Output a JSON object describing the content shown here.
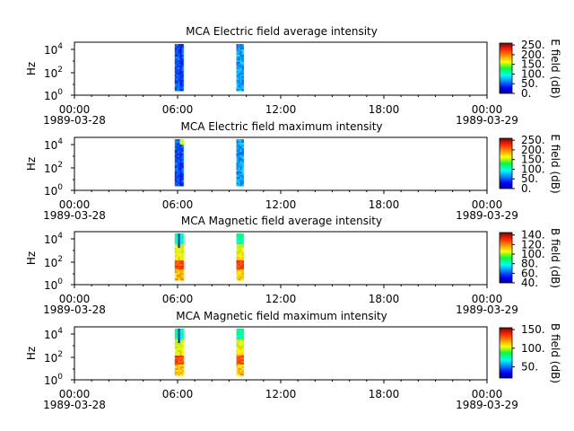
{
  "chart_data": [
    {
      "type": "heatmap",
      "title": "MCA  Electric field average intensity",
      "ylabel": "Hz",
      "y_ticks": [
        "10^4",
        "10^2",
        "10^0"
      ],
      "x_ticks": [
        {
          "time": "00:00",
          "date": "1989-03-28"
        },
        {
          "time": "06:00",
          "date": ""
        },
        {
          "time": "12:00",
          "date": ""
        },
        {
          "time": "18:00",
          "date": ""
        },
        {
          "time": "00:00",
          "date": "1989-03-29"
        }
      ],
      "x_range": [
        "1989-03-28 00:00",
        "1989-03-29 00:00"
      ],
      "colorbar": {
        "label": "E field (dB)",
        "ticks": [
          "250.",
          "200.",
          "150.",
          "100.",
          "50.",
          "0."
        ],
        "range": [
          0,
          260
        ]
      },
      "data_bands": [
        {
          "start": "1989-03-28 05:50",
          "end": "1989-03-28 06:20",
          "palette": "electric"
        },
        {
          "start": "1989-03-28 09:25",
          "end": "1989-03-28 09:50",
          "palette": "electric"
        }
      ]
    },
    {
      "type": "heatmap",
      "title": "MCA  Electric field maximum intensity",
      "ylabel": "Hz",
      "y_ticks": [
        "10^4",
        "10^2",
        "10^0"
      ],
      "x_ticks": [
        {
          "time": "00:00",
          "date": "1989-03-28"
        },
        {
          "time": "06:00",
          "date": ""
        },
        {
          "time": "12:00",
          "date": ""
        },
        {
          "time": "18:00",
          "date": ""
        },
        {
          "time": "00:00",
          "date": "1989-03-29"
        }
      ],
      "x_range": [
        "1989-03-28 00:00",
        "1989-03-29 00:00"
      ],
      "colorbar": {
        "label": "E field (dB)",
        "ticks": [
          "250.",
          "200.",
          "150.",
          "100.",
          "50.",
          "0."
        ],
        "range": [
          0,
          260
        ]
      },
      "data_bands": [
        {
          "start": "1989-03-28 05:50",
          "end": "1989-03-28 06:20",
          "palette": "electric"
        },
        {
          "start": "1989-03-28 09:25",
          "end": "1989-03-28 09:50",
          "palette": "electric"
        }
      ]
    },
    {
      "type": "heatmap",
      "title": "MCA  Magnetic field average intensity",
      "ylabel": "Hz",
      "y_ticks": [
        "10^4",
        "10^2",
        "10^0"
      ],
      "x_ticks": [
        {
          "time": "00:00",
          "date": "1989-03-28"
        },
        {
          "time": "06:00",
          "date": ""
        },
        {
          "time": "12:00",
          "date": ""
        },
        {
          "time": "18:00",
          "date": ""
        },
        {
          "time": "00:00",
          "date": "1989-03-29"
        }
      ],
      "x_range": [
        "1989-03-28 00:00",
        "1989-03-29 00:00"
      ],
      "colorbar": {
        "label": "B field (dB)",
        "ticks": [
          "140.",
          "120.",
          "100.",
          "80.",
          "60.",
          "40."
        ],
        "range": [
          40,
          145
        ]
      },
      "data_bands": [
        {
          "start": "1989-03-28 05:50",
          "end": "1989-03-28 06:20",
          "palette": "magnetic"
        },
        {
          "start": "1989-03-28 09:25",
          "end": "1989-03-28 09:50",
          "palette": "magnetic"
        }
      ]
    },
    {
      "type": "heatmap",
      "title": "MCA  Magnetic field maximum intensity",
      "ylabel": "Hz",
      "y_ticks": [
        "10^4",
        "10^2",
        "10^0"
      ],
      "x_ticks": [
        {
          "time": "00:00",
          "date": "1989-03-28"
        },
        {
          "time": "06:00",
          "date": ""
        },
        {
          "time": "12:00",
          "date": ""
        },
        {
          "time": "18:00",
          "date": ""
        },
        {
          "time": "00:00",
          "date": "1989-03-29"
        }
      ],
      "x_range": [
        "1989-03-28 00:00",
        "1989-03-29 00:00"
      ],
      "colorbar": {
        "label": "B field (dB)",
        "ticks": [
          "150.",
          "100.",
          "50."
        ],
        "range": [
          20,
          155
        ]
      },
      "data_bands": [
        {
          "start": "1989-03-28 05:50",
          "end": "1989-03-28 06:20",
          "palette": "magnetic"
        },
        {
          "start": "1989-03-28 09:25",
          "end": "1989-03-28 09:50",
          "palette": "magnetic"
        }
      ]
    }
  ]
}
